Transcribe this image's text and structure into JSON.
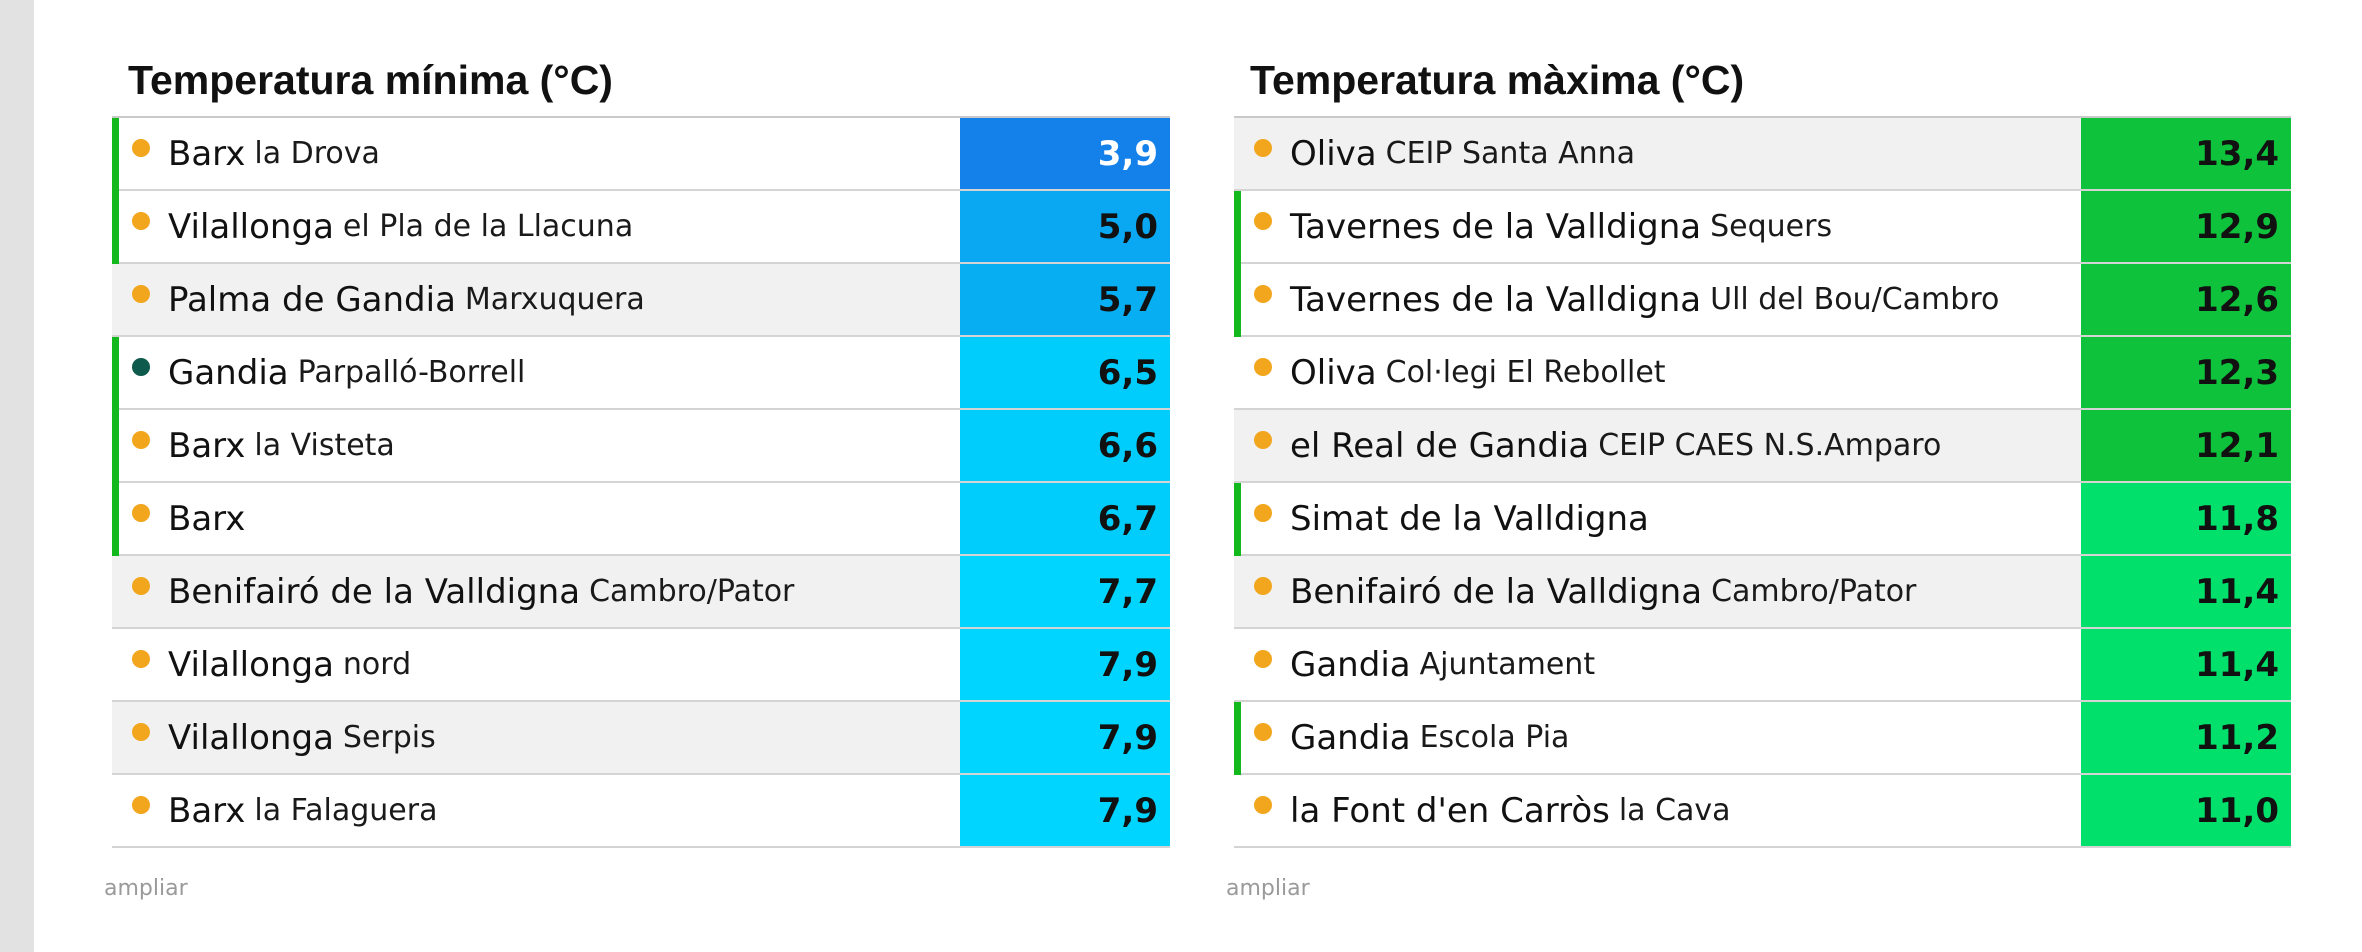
{
  "colors": {
    "left_strip": "#e2e2e2",
    "marker": "#12b81c",
    "dot_orange": "#f2a61e",
    "dot_green": "#0e5a4c"
  },
  "min_panel": {
    "title": "Temperatura mínima (°C)",
    "expand_label": "ampliar",
    "rows": [
      {
        "town": "Barx",
        "site": "la Drova",
        "value": "3,9",
        "dot": "orange",
        "marker": true,
        "bg": "#1481eb",
        "fg": "#ffffff"
      },
      {
        "town": "Vilallonga",
        "site": "el Pla de la Llacuna",
        "value": "5,0",
        "dot": "orange",
        "marker": true,
        "bg": "#0aa8f2",
        "fg": "#111111"
      },
      {
        "town": "Palma de Gandia",
        "site": "Marxuquera",
        "value": "5,7",
        "dot": "orange",
        "marker": false,
        "bg": "#08aef2",
        "fg": "#111111"
      },
      {
        "town": "Gandia",
        "site": "Parpalló-Borrell",
        "value": "6,5",
        "dot": "green",
        "marker": true,
        "bg": "#00cdfb",
        "fg": "#111111"
      },
      {
        "town": "Barx",
        "site": "la Visteta",
        "value": "6,6",
        "dot": "orange",
        "marker": true,
        "bg": "#00cdfb",
        "fg": "#111111"
      },
      {
        "town": "Barx",
        "site": "",
        "value": "6,7",
        "dot": "orange",
        "marker": true,
        "bg": "#00cdfb",
        "fg": "#111111"
      },
      {
        "town": "Benifairó de la Valldigna",
        "site": "Cambro/Pator",
        "value": "7,7",
        "dot": "orange",
        "marker": false,
        "bg": "#00d5ff",
        "fg": "#111111"
      },
      {
        "town": "Vilallonga",
        "site": "nord",
        "value": "7,9",
        "dot": "orange",
        "marker": false,
        "bg": "#00d5ff",
        "fg": "#111111"
      },
      {
        "town": "Vilallonga",
        "site": "Serpis",
        "value": "7,9",
        "dot": "orange",
        "marker": false,
        "bg": "#00d5ff",
        "fg": "#111111"
      },
      {
        "town": "Barx",
        "site": "la Falaguera",
        "value": "7,9",
        "dot": "orange",
        "marker": false,
        "bg": "#00d5ff",
        "fg": "#111111"
      }
    ]
  },
  "max_panel": {
    "title": "Temperatura màxima (°C)",
    "expand_label": "ampliar",
    "rows": [
      {
        "town": "Oliva",
        "site": "CEIP Santa Anna",
        "value": "13,4",
        "dot": "orange",
        "marker": false,
        "bg": "#0fc23b",
        "fg": "#111111"
      },
      {
        "town": "Tavernes de la Valldigna",
        "site": "Sequers",
        "value": "12,9",
        "dot": "orange",
        "marker": true,
        "bg": "#0fc23b",
        "fg": "#111111"
      },
      {
        "town": "Tavernes de la Valldigna",
        "site": "Ull del Bou/Cambro",
        "value": "12,6",
        "dot": "orange",
        "marker": true,
        "bg": "#0fc23b",
        "fg": "#111111"
      },
      {
        "town": "Oliva",
        "site": "Col·legi El Rebollet",
        "value": "12,3",
        "dot": "orange",
        "marker": false,
        "bg": "#0fc23b",
        "fg": "#111111"
      },
      {
        "town": "el Real de Gandia",
        "site": "CEIP CAES N.S.Amparo",
        "value": "12,1",
        "dot": "orange",
        "marker": false,
        "bg": "#0fc23b",
        "fg": "#111111"
      },
      {
        "town": "Simat de la Valldigna",
        "site": "",
        "value": "11,8",
        "dot": "orange",
        "marker": true,
        "bg": "#00e06b",
        "fg": "#111111"
      },
      {
        "town": "Benifairó de la Valldigna",
        "site": "Cambro/Pator",
        "value": "11,4",
        "dot": "orange",
        "marker": false,
        "bg": "#00e06b",
        "fg": "#111111"
      },
      {
        "town": "Gandia",
        "site": "Ajuntament",
        "value": "11,4",
        "dot": "orange",
        "marker": false,
        "bg": "#00e06b",
        "fg": "#111111"
      },
      {
        "town": "Gandia",
        "site": "Escola Pia",
        "value": "11,2",
        "dot": "orange",
        "marker": true,
        "bg": "#00e06b",
        "fg": "#111111"
      },
      {
        "town": "la Font d'en Carròs",
        "site": "la Cava",
        "value": "11,0",
        "dot": "orange",
        "marker": false,
        "bg": "#00e06b",
        "fg": "#111111"
      }
    ]
  }
}
